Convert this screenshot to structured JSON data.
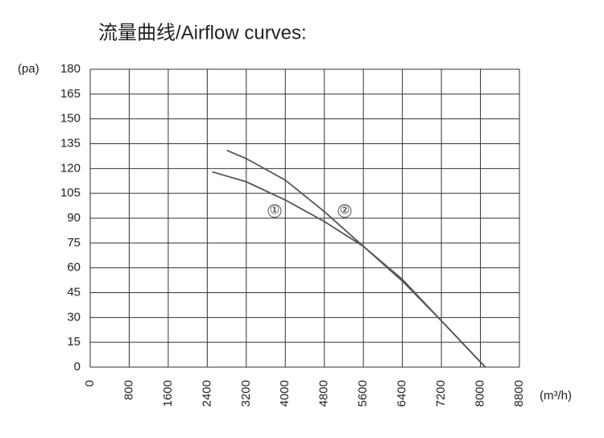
{
  "chart_data": {
    "type": "line",
    "title": "流量曲线/Airflow curves:",
    "y_label": "(pa)",
    "x_label": "(m³/h)",
    "xlim": [
      0,
      8800
    ],
    "xticks": [
      0,
      800,
      1600,
      2400,
      3200,
      4000,
      4800,
      5600,
      6400,
      7200,
      8000,
      8800
    ],
    "ylim": [
      0,
      180
    ],
    "yticks": [
      0,
      15,
      30,
      45,
      60,
      75,
      90,
      105,
      120,
      135,
      150,
      165,
      180
    ],
    "grid": true,
    "series": [
      {
        "name": "①",
        "color": "#555555",
        "x": [
          2500,
          3200,
          4000,
          4800,
          5600,
          6400,
          7200,
          8100
        ],
        "values": [
          118,
          112,
          101,
          88,
          73,
          52,
          28,
          0
        ]
      },
      {
        "name": "②",
        "color": "#555555",
        "x": [
          2800,
          3200,
          4000,
          4800,
          5600,
          6400,
          7200,
          8100
        ],
        "values": [
          131,
          126,
          113,
          94,
          73,
          53,
          28,
          0
        ]
      }
    ]
  }
}
